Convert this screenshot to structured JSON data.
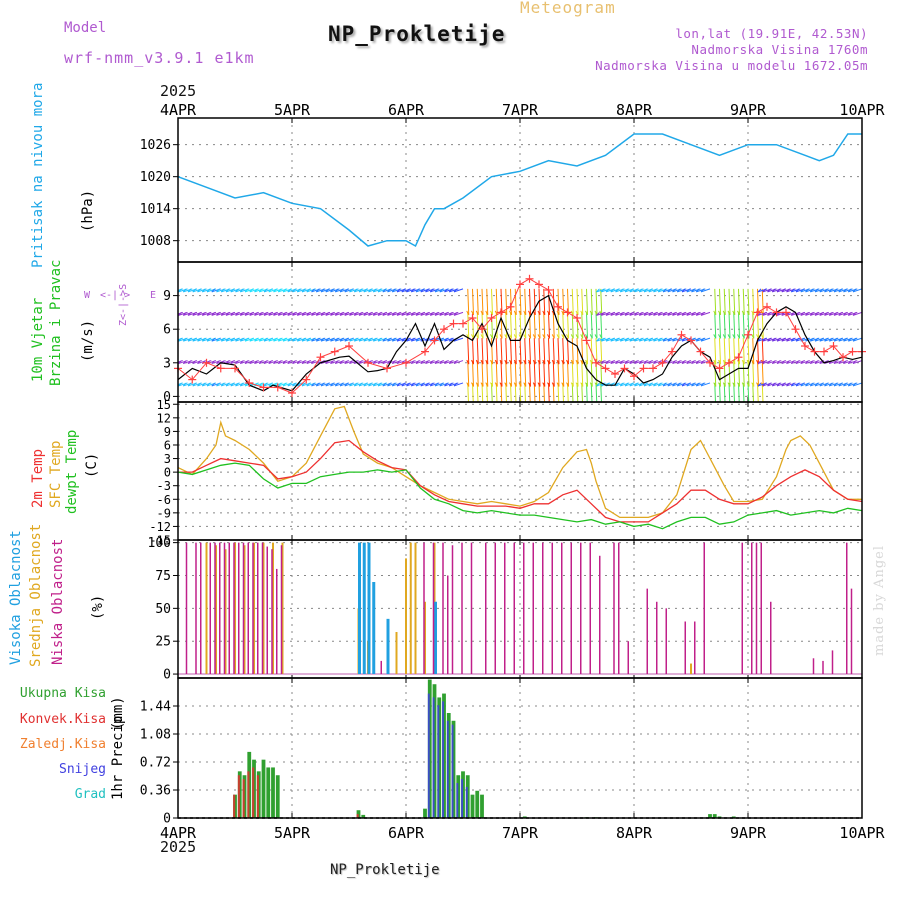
{
  "header": {
    "model_label": "Model",
    "model_value": "wrf-nmm_v3.9.1 e1km",
    "title": "NP_Prokletije",
    "subtitle": "Meteogram",
    "lonlat": "lon,lat (19.91E, 42.53N)",
    "elevation": "Nadmorska Visina 1760m",
    "model_elevation": "Nadmorska Visina u modelu 1672.05m"
  },
  "footer": {
    "station": "NP_Prokletije",
    "credit": "made by Angel"
  },
  "time_axis": {
    "year": "2025",
    "ticks": [
      "4APR",
      "5APR",
      "6APR",
      "7APR",
      "8APR",
      "9APR",
      "10APR"
    ],
    "start_hour": 0,
    "end_hour": 144
  },
  "colors": {
    "pressure": "#20a8e8",
    "wind_speed": "#000000",
    "wind_gust": "#ff4040",
    "temp_2m": "#ee3030",
    "temp_sfc": "#e0a820",
    "dewpoint": "#20c020",
    "cloud_high": "#20a0e0",
    "cloud_mid": "#e0a820",
    "cloud_low": "#c0208a",
    "precip_total": "#30a030",
    "precip_conv": "#e03030",
    "precip_frozen": "#f08030",
    "precip_snow": "#4040e0",
    "precip_grad": "#20c0c0"
  },
  "chart_data": [
    {
      "type": "line",
      "panel": "pressure",
      "ylabel_main": "Pritisak na nivou mora",
      "unit": "(hPa)",
      "yticks": [
        1008,
        1014,
        1020,
        1026
      ],
      "ylim": [
        1004,
        1031
      ],
      "grid": true,
      "series": [
        {
          "x": [
            0,
            6,
            12,
            18,
            24,
            30,
            36,
            40,
            44,
            48,
            50,
            52,
            54,
            56,
            60,
            66,
            72,
            78,
            84,
            90,
            96,
            102,
            108,
            114,
            120,
            126,
            132,
            135,
            138,
            141,
            144
          ],
          "values": [
            1020,
            1018,
            1016,
            1017,
            1015,
            1014,
            1010,
            1007,
            1008,
            1008,
            1007,
            1011,
            1014,
            1014,
            1016,
            1020,
            1021,
            1023,
            1022,
            1024,
            1028,
            1028,
            1026,
            1024,
            1026,
            1026,
            1024,
            1023,
            1024,
            1028,
            1028
          ]
        }
      ]
    },
    {
      "type": "line",
      "panel": "wind",
      "ylabel_main": "10m Vjetar",
      "ylabel_sub": "Brzina i Pravac",
      "unit": "(m/s)",
      "yticks": [
        0,
        3,
        6,
        9
      ],
      "ylim": [
        -0.5,
        12
      ],
      "grid": true,
      "series": [
        {
          "name_key": "speed",
          "x": [
            0,
            3,
            6,
            9,
            12,
            15,
            18,
            20,
            24,
            27,
            30,
            34,
            36,
            40,
            42,
            44,
            46,
            48,
            50,
            52,
            54,
            56,
            58,
            60,
            62,
            64,
            66,
            68,
            70,
            72,
            74,
            76,
            78,
            80,
            82,
            84,
            86,
            88,
            90,
            92,
            94,
            96,
            98,
            100,
            102,
            104,
            106,
            108,
            110,
            112,
            114,
            116,
            118,
            120,
            122,
            124,
            126,
            128,
            130,
            132,
            134,
            136,
            138,
            140,
            142,
            144
          ],
          "values": [
            1.5,
            2.5,
            2,
            3,
            2.8,
            1,
            0.5,
            1,
            0.5,
            2,
            3,
            3.5,
            3.6,
            2.2,
            2.3,
            2.5,
            4,
            5,
            6.5,
            4.5,
            6.5,
            4.2,
            5,
            5.5,
            5,
            6.5,
            4.5,
            7,
            5,
            5,
            7,
            8.5,
            9,
            6.5,
            5,
            4.5,
            2.5,
            1.5,
            1,
            1,
            2.5,
            2,
            1.2,
            1.5,
            2,
            3.5,
            4.5,
            5,
            4,
            3.5,
            1.5,
            2,
            2.5,
            2.5,
            5,
            6.5,
            7.5,
            8,
            7.5,
            5.5,
            4,
            3,
            3.2,
            3.5,
            3.3,
            3.5
          ]
        },
        {
          "name_key": "gust",
          "x": [
            0,
            3,
            6,
            9,
            12,
            15,
            18,
            21,
            24,
            27,
            30,
            33,
            36,
            40,
            44,
            48,
            52,
            54,
            56,
            58,
            60,
            62,
            64,
            66,
            68,
            70,
            72,
            74,
            76,
            78,
            80,
            82,
            84,
            86,
            88,
            90,
            92,
            94,
            96,
            98,
            100,
            102,
            104,
            106,
            108,
            110,
            112,
            114,
            116,
            118,
            120,
            122,
            124,
            126,
            128,
            130,
            132,
            134,
            136,
            138,
            140,
            142,
            144
          ],
          "values": [
            2.5,
            1.5,
            3,
            2.5,
            2.5,
            1.2,
            0.8,
            0.8,
            0.3,
            1.5,
            3.5,
            4,
            4.5,
            3,
            2.5,
            3,
            4,
            5,
            6,
            6.5,
            6.5,
            7,
            6,
            7,
            7.5,
            8,
            10,
            10.5,
            10,
            9.5,
            8,
            7.5,
            7,
            5,
            3,
            2.5,
            2,
            2.5,
            1.8,
            2.5,
            2.5,
            3,
            4,
            5.5,
            5,
            4,
            3,
            2.5,
            3,
            3.5,
            5.5,
            7.5,
            8,
            7.5,
            7.5,
            6,
            4.5,
            4,
            4,
            4.5,
            3.5,
            4,
            4
          ]
        }
      ],
      "arrow_rows": [
        1.2,
        3.2,
        5.2,
        7.5,
        9.6
      ],
      "direction_legend": {
        "w": "W",
        "e": "E",
        "axis": "Z<-|->S",
        "left_top": "S",
        "left_bot": "Z"
      }
    },
    {
      "type": "line",
      "panel": "temperature",
      "ylabel_1": "2m Temp",
      "ylabel_2": "SFC Temp",
      "ylabel_3": "dewpt Temp",
      "unit": "(C)",
      "yticks": [
        15,
        12,
        9,
        6,
        3,
        0,
        -3,
        -6,
        -9,
        -12,
        -15
      ],
      "ylim": [
        -15,
        15.5
      ],
      "grid": true,
      "series": [
        {
          "name_key": "t2m",
          "x": [
            0,
            3,
            6,
            9,
            12,
            15,
            18,
            21,
            24,
            27,
            30,
            33,
            36,
            39,
            42,
            45,
            48,
            51,
            54,
            57,
            60,
            63,
            66,
            69,
            72,
            75,
            78,
            81,
            84,
            87,
            90,
            93,
            96,
            99,
            102,
            105,
            108,
            111,
            114,
            117,
            120,
            123,
            126,
            129,
            132,
            135,
            138,
            141,
            144
          ],
          "values": [
            0,
            0,
            1.5,
            3,
            2.5,
            2,
            1.5,
            -1.5,
            -1,
            0,
            3,
            6.5,
            7,
            4.5,
            2.5,
            1,
            0.5,
            -3,
            -5,
            -6.5,
            -7,
            -7.5,
            -7.5,
            -7.5,
            -8,
            -7,
            -7,
            -5,
            -4,
            -7,
            -10,
            -11,
            -11,
            -11,
            -9,
            -7,
            -4,
            -4,
            -6,
            -7,
            -7,
            -5.5,
            -3,
            -1,
            0.5,
            -1,
            -4,
            -6,
            -6.5
          ]
        },
        {
          "name_key": "tsfc",
          "x": [
            0,
            3,
            6,
            8,
            9,
            10,
            12,
            15,
            18,
            21,
            24,
            27,
            30,
            33,
            35,
            37,
            39,
            42,
            45,
            48,
            51,
            54,
            57,
            60,
            63,
            66,
            69,
            72,
            75,
            78,
            81,
            84,
            86,
            87,
            88,
            90,
            93,
            96,
            99,
            102,
            105,
            108,
            110,
            111,
            113,
            115,
            117,
            120,
            123,
            126,
            128,
            129,
            131,
            133,
            135,
            138,
            141,
            144
          ],
          "values": [
            1,
            -0.5,
            3,
            6,
            11,
            8,
            7,
            5,
            2,
            -2,
            -1,
            2,
            8,
            14,
            14.5,
            9,
            4,
            2,
            1,
            -1,
            -3,
            -4.5,
            -6,
            -6.5,
            -7,
            -6.5,
            -7,
            -7.5,
            -6.5,
            -4.5,
            1,
            4.5,
            5,
            2,
            -2,
            -8,
            -10,
            -10,
            -10,
            -9,
            -5,
            5,
            7,
            5,
            1,
            -3,
            -6.5,
            -6.5,
            -6,
            -1,
            5,
            7,
            8,
            6,
            2,
            -4,
            -6,
            -6
          ]
        },
        {
          "name_key": "dew",
          "x": [
            0,
            3,
            6,
            9,
            12,
            15,
            18,
            21,
            24,
            27,
            30,
            33,
            36,
            39,
            42,
            45,
            48,
            51,
            54,
            57,
            60,
            63,
            66,
            69,
            72,
            75,
            78,
            81,
            84,
            87,
            90,
            93,
            96,
            99,
            102,
            105,
            108,
            111,
            114,
            117,
            120,
            123,
            126,
            129,
            132,
            135,
            138,
            141,
            144
          ],
          "values": [
            0,
            -0.5,
            0.5,
            1.5,
            2,
            1.5,
            -1.5,
            -3.5,
            -2.5,
            -2.5,
            -1,
            -0.5,
            0,
            0,
            0.5,
            0,
            0.5,
            -3.5,
            -6,
            -7,
            -8.5,
            -9,
            -8.5,
            -9,
            -9.5,
            -9.5,
            -10,
            -10.5,
            -11,
            -10.5,
            -11.5,
            -11,
            -12,
            -11.5,
            -12.5,
            -11,
            -10,
            -10,
            -11.5,
            -11,
            -9.5,
            -9,
            -8.5,
            -9.5,
            -9,
            -8.5,
            -9,
            -8,
            -8.5
          ]
        }
      ]
    },
    {
      "type": "bar",
      "panel": "clouds",
      "ylabel_1": "Visoka Oblacnost",
      "ylabel_2": "Srednja Oblacnost",
      "ylabel_3": "Niska Oblacnost",
      "unit": "(%)",
      "yticks": [
        0,
        25,
        50,
        75,
        100
      ],
      "ylim": [
        -3,
        102
      ],
      "grid": true,
      "low": {
        "x": [
          2,
          4,
          5,
          7,
          8,
          9,
          10,
          11,
          12,
          13,
          14,
          15,
          16,
          17,
          18,
          19,
          20,
          21,
          22,
          43,
          52,
          54,
          56,
          57,
          58,
          60,
          62,
          65,
          67,
          69,
          71,
          73,
          75,
          77,
          79,
          81,
          83,
          85,
          87,
          89,
          92,
          93,
          95,
          99,
          101,
          103,
          107,
          109,
          111,
          119,
          121,
          122,
          123,
          125,
          134,
          136,
          138,
          141,
          142
        ],
        "values": [
          100,
          100,
          100,
          100,
          100,
          100,
          100,
          100,
          100,
          100,
          100,
          100,
          100,
          100,
          100,
          97,
          95,
          80,
          98,
          10,
          100,
          100,
          100,
          75,
          98,
          100,
          100,
          100,
          100,
          100,
          100,
          100,
          100,
          100,
          100,
          100,
          100,
          100,
          100,
          90,
          100,
          100,
          25,
          65,
          55,
          50,
          40,
          40,
          100,
          100,
          100,
          100,
          100,
          55,
          12,
          10,
          18,
          100,
          65
        ]
      },
      "mid": {
        "x": [
          6,
          8,
          10,
          12,
          14,
          16,
          18,
          20,
          22,
          38,
          40,
          46,
          48,
          49,
          50,
          52,
          54,
          108
        ],
        "values": [
          100,
          98,
          95,
          100,
          98,
          100,
          100,
          100,
          100,
          50,
          25,
          32,
          88,
          100,
          100,
          55,
          100,
          8
        ]
      },
      "high": {
        "x": [
          38,
          39,
          40,
          41,
          44,
          54
        ],
        "values": [
          100,
          100,
          100,
          70,
          42,
          55
        ]
      }
    },
    {
      "type": "bar",
      "panel": "precip",
      "ylabel_main": "1hr Precip",
      "unit": "(mm)",
      "legend": [
        "Ukupna Kisa",
        "Konvek.Kisa",
        "Zaledj.Kisa",
        "Snijeg",
        "Grad"
      ],
      "yticks": [
        0,
        0.36,
        0.72,
        1.08,
        1.44
      ],
      "ylim": [
        0,
        1.8
      ],
      "grid": true,
      "total": {
        "x": [
          12,
          13,
          14,
          15,
          16,
          17,
          18,
          19,
          20,
          21,
          38,
          39,
          52,
          53,
          54,
          55,
          56,
          57,
          58,
          59,
          60,
          61,
          62,
          63,
          64,
          73,
          86,
          88,
          112,
          113,
          114,
          117
        ],
        "values": [
          0.3,
          0.6,
          0.55,
          0.85,
          0.75,
          0.6,
          0.75,
          0.65,
          0.65,
          0.55,
          0.1,
          0.04,
          0.12,
          1.78,
          1.72,
          1.55,
          1.6,
          1.35,
          1.25,
          0.55,
          0.6,
          0.55,
          0.3,
          0.35,
          0.3,
          0.02,
          0.01,
          0.01,
          0.05,
          0.05,
          0.02,
          0.02
        ]
      },
      "conv": {
        "x": [
          12,
          13,
          14,
          15,
          16,
          17,
          38
        ],
        "values": [
          0.3,
          0.55,
          0.5,
          0.6,
          0.65,
          0.55,
          0.05
        ]
      },
      "snow": {
        "x": [
          53,
          54,
          55,
          56,
          57,
          58,
          59,
          60,
          61
        ],
        "values": [
          1.6,
          1.55,
          1.45,
          1.5,
          1.25,
          1.2,
          0.45,
          0.5,
          0.4
        ]
      }
    }
  ]
}
